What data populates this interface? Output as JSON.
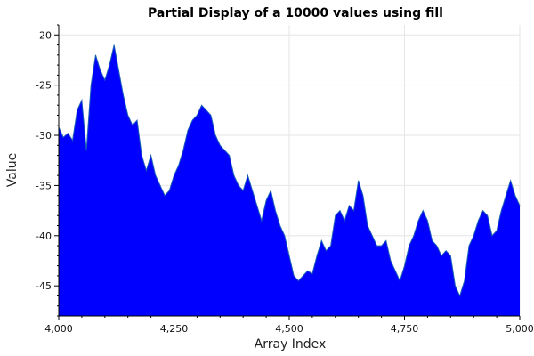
{
  "chart_data": {
    "type": "area",
    "title": "Partial Display of a 10000 values using fill",
    "xlabel": "Array Index",
    "ylabel": "Value",
    "xlim": [
      4000,
      5000
    ],
    "ylim": [
      -48,
      -19
    ],
    "x_ticks": [
      4000,
      4250,
      4500,
      4750,
      5000
    ],
    "x_tick_labels": [
      "4,000",
      "4,250",
      "4,500",
      "4,750",
      "5,000"
    ],
    "y_ticks": [
      -20,
      -25,
      -30,
      -35,
      -40,
      -45
    ],
    "y_tick_labels": [
      "-20",
      "-25",
      "-30",
      "-35",
      "-40",
      "-45"
    ],
    "grid": true,
    "fill_color": "#0000ff",
    "line_color": "#1a5fb4",
    "series": [
      {
        "fill_to": -48,
        "x": [
          4000,
          4010,
          4020,
          4030,
          4040,
          4050,
          4060,
          4070,
          4080,
          4090,
          4100,
          4110,
          4120,
          4130,
          4140,
          4150,
          4160,
          4170,
          4180,
          4190,
          4200,
          4210,
          4220,
          4230,
          4240,
          4250,
          4260,
          4270,
          4280,
          4290,
          4300,
          4310,
          4320,
          4330,
          4340,
          4350,
          4360,
          4370,
          4380,
          4390,
          4400,
          4410,
          4420,
          4430,
          4440,
          4450,
          4460,
          4470,
          4480,
          4490,
          4500,
          4510,
          4520,
          4530,
          4540,
          4550,
          4560,
          4570,
          4580,
          4590,
          4600,
          4610,
          4620,
          4630,
          4640,
          4650,
          4660,
          4670,
          4680,
          4690,
          4700,
          4710,
          4720,
          4730,
          4740,
          4750,
          4760,
          4770,
          4780,
          4790,
          4800,
          4810,
          4820,
          4830,
          4840,
          4850,
          4860,
          4870,
          4880,
          4890,
          4900,
          4910,
          4920,
          4930,
          4940,
          4950,
          4960,
          4970,
          4980,
          4990,
          5000
        ],
        "y": [
          -29.2,
          -30.2,
          -29.8,
          -30.5,
          -27.5,
          -26.5,
          -31.5,
          -25.0,
          -22.0,
          -23.5,
          -24.5,
          -23.0,
          -21.0,
          -23.5,
          -26.0,
          -28.0,
          -29.0,
          -28.5,
          -32.0,
          -33.5,
          -32.0,
          -34.0,
          -35.0,
          -36.0,
          -35.5,
          -34.0,
          -33.0,
          -31.5,
          -29.5,
          -28.5,
          -28.0,
          -27.0,
          -27.5,
          -28.0,
          -30.0,
          -31.0,
          -31.5,
          -32.0,
          -34.0,
          -35.0,
          -35.5,
          -34.0,
          -35.5,
          -37.0,
          -38.5,
          -36.5,
          -35.5,
          -37.5,
          -39.0,
          -40.0,
          -42.0,
          -44.0,
          -44.5,
          -44.0,
          -43.5,
          -43.8,
          -42.0,
          -40.5,
          -41.5,
          -41.0,
          -38.0,
          -37.5,
          -38.5,
          -37.0,
          -37.5,
          -34.5,
          -36.0,
          -39.0,
          -40.0,
          -41.0,
          -41.0,
          -40.5,
          -42.5,
          -43.5,
          -44.5,
          -43.0,
          -41.0,
          -40.0,
          -38.5,
          -37.5,
          -38.5,
          -40.5,
          -41.0,
          -42.0,
          -41.5,
          -42.0,
          -45.0,
          -46.0,
          -44.5,
          -41.0,
          -40.0,
          -38.5,
          -37.5,
          -38.0,
          -40.0,
          -39.5,
          -37.5,
          -36.0,
          -34.5,
          -36.0,
          -37.0
        ]
      }
    ]
  }
}
